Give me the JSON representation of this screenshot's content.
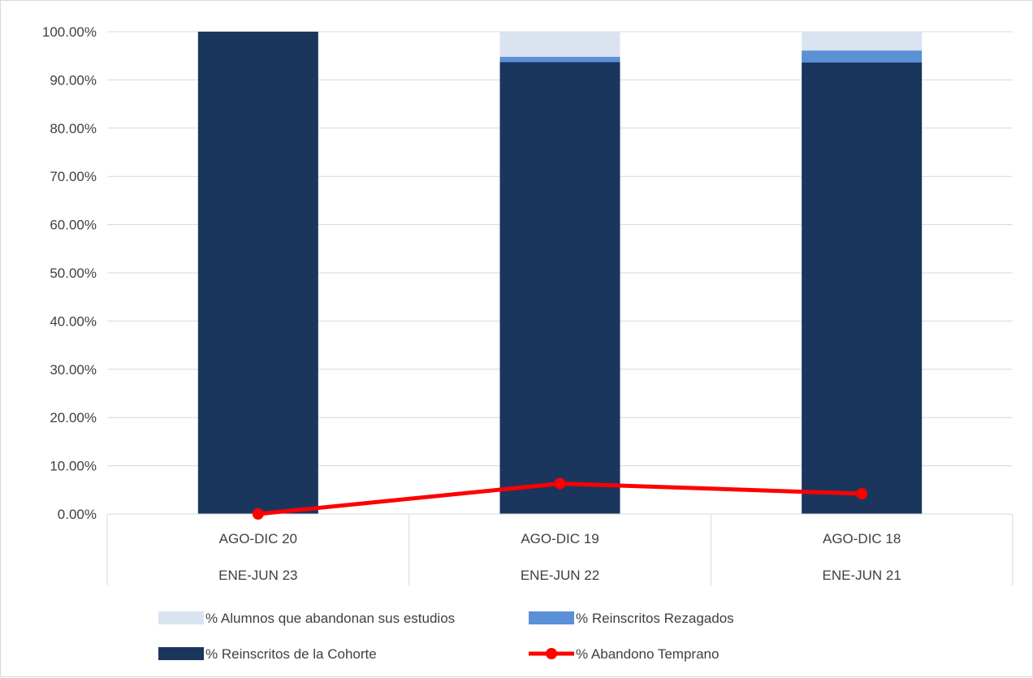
{
  "chart_data": {
    "type": "bar",
    "stacked": true,
    "categories": [
      {
        "top": "AGO-DIC 20",
        "bottom": "ENE-JUN 23"
      },
      {
        "top": "AGO-DIC 19",
        "bottom": "ENE-JUN 22"
      },
      {
        "top": "AGO-DIC 18",
        "bottom": "ENE-JUN 21"
      }
    ],
    "series": [
      {
        "name": "% Reinscritos de la Cohorte",
        "kind": "bar",
        "color": "#1a365d",
        "values": [
          100.0,
          93.7,
          93.6
        ]
      },
      {
        "name": "% Reinscritos Rezagados",
        "kind": "bar",
        "color": "#5b8fd6",
        "values": [
          0.0,
          1.1,
          2.5
        ]
      },
      {
        "name": "% Alumnos que abandonan sus estudios",
        "kind": "bar",
        "color": "#dae3f0",
        "values": [
          0.0,
          5.2,
          3.9
        ]
      },
      {
        "name": "% Abandono Temprano",
        "kind": "line",
        "color": "#ff0000",
        "values": [
          0.0,
          6.3,
          4.2
        ]
      }
    ],
    "yticks": [
      "0.00%",
      "10.00%",
      "20.00%",
      "30.00%",
      "40.00%",
      "50.00%",
      "60.00%",
      "70.00%",
      "80.00%",
      "90.00%",
      "100.00%"
    ],
    "ylim": [
      0,
      100
    ],
    "grid": true,
    "legend_position": "bottom",
    "legend_order": [
      2,
      1,
      0,
      3
    ]
  }
}
